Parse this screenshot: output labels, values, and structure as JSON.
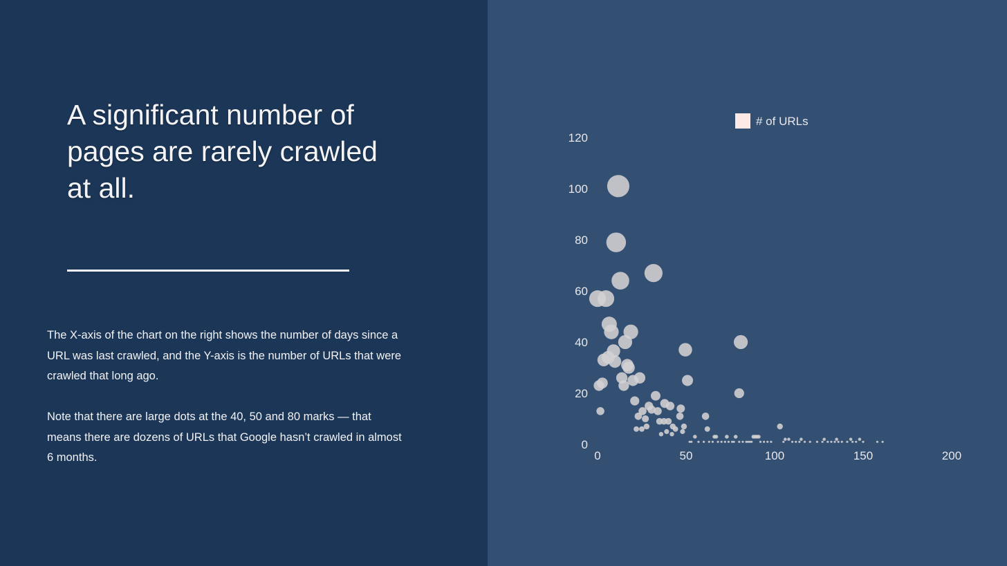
{
  "slide": {
    "title": "A significant number of pages are rarely crawled at all.",
    "paragraphs": [
      "The X-axis of the chart on the right shows the number of days since a URL was last crawled, and the Y-axis is the number of URLs that were crawled that long ago.",
      "Note that there are large dots at the 40, 50 and 80 marks — that means there are dozens of URLs that Google hasn’t crawled in almost 6 months."
    ]
  },
  "colors": {
    "left_bg": "#1b3657",
    "right_bg": "#335073",
    "bubble": "#d3d0d3",
    "legend_swatch": "#fde9e6"
  },
  "chart_data": {
    "type": "scatter",
    "title": "",
    "xlabel": "",
    "ylabel": "",
    "xlim": [
      0,
      200
    ],
    "ylim": [
      0,
      120
    ],
    "xticks": [
      "0",
      "50",
      "100",
      "150",
      "200"
    ],
    "yticks": [
      "0",
      "20",
      "40",
      "60",
      "80",
      "100",
      "120"
    ],
    "grid": false,
    "legend_placement": "top",
    "series": [
      {
        "name": "# of URLs",
        "points": [
          [
            11.7,
            101
          ],
          [
            10.5,
            79
          ],
          [
            12.9,
            64
          ],
          [
            31.6,
            67
          ],
          [
            0,
            57
          ],
          [
            4.7,
            57
          ],
          [
            6.6,
            47
          ],
          [
            7.8,
            44
          ],
          [
            18.8,
            44
          ],
          [
            15.6,
            40
          ],
          [
            9,
            36.5
          ],
          [
            3.5,
            33
          ],
          [
            6,
            34
          ],
          [
            9.8,
            32.4
          ],
          [
            16.8,
            31
          ],
          [
            17.6,
            30
          ],
          [
            13.7,
            26
          ],
          [
            20,
            25
          ],
          [
            23.8,
            26
          ],
          [
            14.8,
            23
          ],
          [
            0.8,
            23
          ],
          [
            2.7,
            24
          ],
          [
            1.6,
            13
          ],
          [
            49.6,
            37
          ],
          [
            50.8,
            25
          ],
          [
            80.9,
            40
          ],
          [
            80,
            20
          ],
          [
            21,
            17
          ],
          [
            32.8,
            19
          ],
          [
            37.9,
            16
          ],
          [
            41,
            15
          ],
          [
            29,
            15
          ],
          [
            30.5,
            13.6
          ],
          [
            25.4,
            13
          ],
          [
            34,
            13
          ],
          [
            47,
            14
          ],
          [
            23,
            11
          ],
          [
            27,
            10
          ],
          [
            35,
            9
          ],
          [
            37.5,
            9
          ],
          [
            40,
            9
          ],
          [
            46.5,
            11
          ],
          [
            42.5,
            7
          ],
          [
            44,
            6
          ],
          [
            48.8,
            7
          ],
          [
            21.9,
            6
          ],
          [
            25,
            6
          ],
          [
            27.7,
            7
          ],
          [
            35.9,
            4
          ],
          [
            39,
            5
          ],
          [
            42,
            4
          ],
          [
            48,
            5
          ],
          [
            61,
            11
          ],
          [
            62,
            6
          ],
          [
            103,
            7
          ],
          [
            55,
            3
          ],
          [
            66,
            3
          ],
          [
            67,
            3
          ],
          [
            73,
            3
          ],
          [
            78,
            3
          ],
          [
            88,
            3
          ],
          [
            89,
            3
          ],
          [
            90,
            3
          ],
          [
            91,
            3
          ],
          [
            106,
            2
          ],
          [
            108,
            2
          ],
          [
            115,
            2
          ],
          [
            128,
            2
          ],
          [
            135,
            2
          ],
          [
            143,
            2
          ],
          [
            148,
            2
          ],
          [
            52,
            1
          ],
          [
            53,
            1
          ],
          [
            57,
            1
          ],
          [
            60,
            1
          ],
          [
            63,
            1
          ],
          [
            65,
            1
          ],
          [
            68,
            1
          ],
          [
            70,
            1
          ],
          [
            72,
            1
          ],
          [
            74,
            1
          ],
          [
            76,
            1
          ],
          [
            77,
            1
          ],
          [
            80,
            1
          ],
          [
            82,
            1
          ],
          [
            84,
            1
          ],
          [
            85,
            1
          ],
          [
            86,
            1
          ],
          [
            87,
            1
          ],
          [
            92,
            1
          ],
          [
            94,
            1
          ],
          [
            96,
            1
          ],
          [
            98,
            1
          ],
          [
            105,
            1
          ],
          [
            110,
            1
          ],
          [
            112,
            1
          ],
          [
            114,
            1
          ],
          [
            117,
            1
          ],
          [
            120,
            1
          ],
          [
            124,
            1
          ],
          [
            127,
            1
          ],
          [
            130,
            1
          ],
          [
            132,
            1
          ],
          [
            134,
            1
          ],
          [
            136,
            1
          ],
          [
            138,
            1
          ],
          [
            141,
            1
          ],
          [
            144,
            1
          ],
          [
            146,
            1
          ],
          [
            150,
            1
          ],
          [
            158,
            1
          ],
          [
            161,
            1
          ]
        ]
      }
    ]
  }
}
